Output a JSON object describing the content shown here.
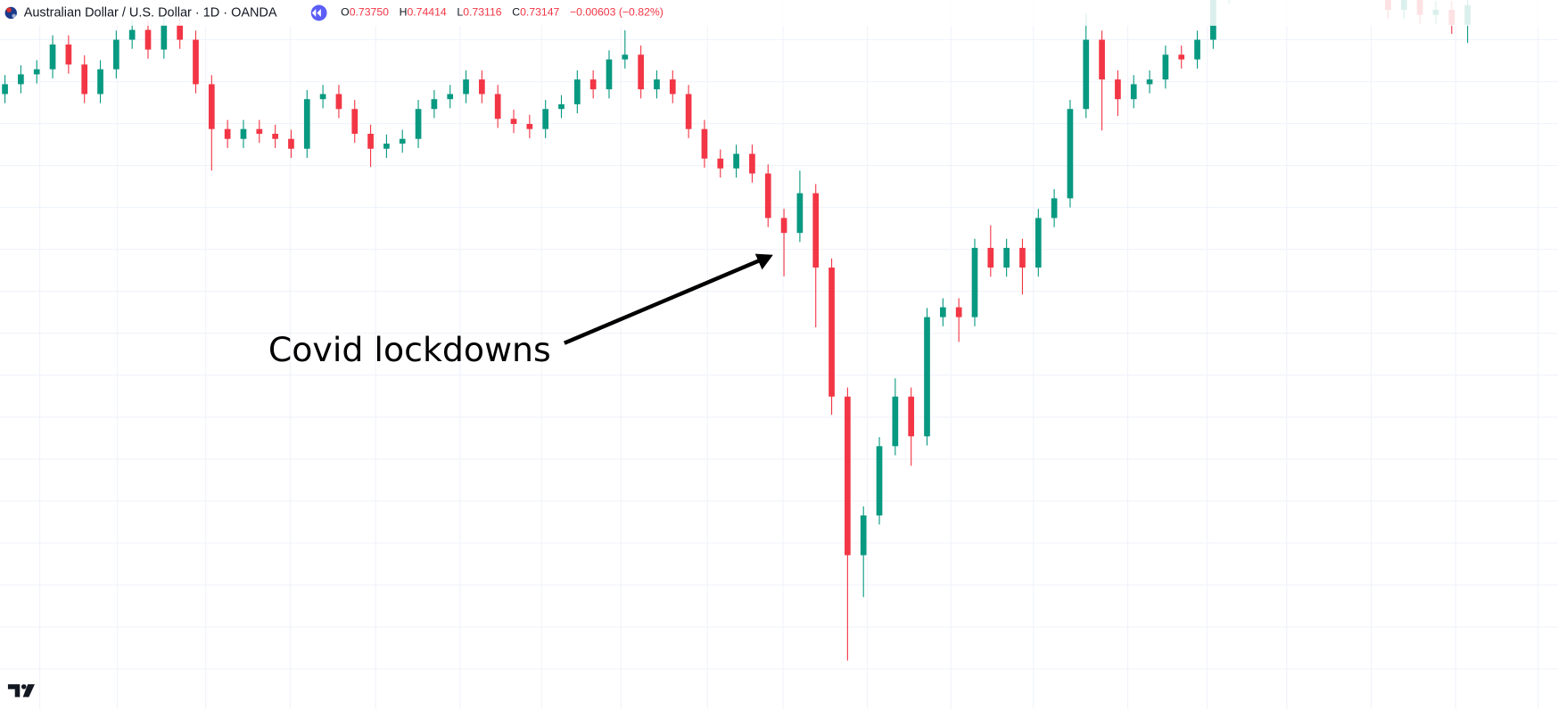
{
  "chart_data": {
    "type": "candlestick",
    "title": "Australian Dollar / U.S. Dollar · 1D · OANDA",
    "legend": {
      "open_label": "O",
      "open": "0.73750",
      "high_label": "H",
      "high": "0.74414",
      "low_label": "L",
      "low": "0.73116",
      "close_label": "C",
      "close": "0.73147",
      "change": "−0.00603 (−0.82%)"
    },
    "annotation": "Covid lockdowns",
    "up_color": "#089981",
    "down_color": "#f23645",
    "ylim": [
      0.5373,
      0.7318
    ],
    "open": [
      0.706,
      0.7087,
      0.7114,
      0.7128,
      0.7196,
      0.7141,
      0.706,
      0.7128,
      0.7209,
      0.7236,
      0.7182,
      0.725,
      0.7209,
      0.7087,
      0.6964,
      0.6937,
      0.6964,
      0.6951,
      0.6937,
      0.691,
      0.7046,
      0.706,
      0.7019,
      0.6951,
      0.691,
      0.6924,
      0.6937,
      0.7019,
      0.7046,
      0.706,
      0.71,
      0.706,
      0.6992,
      0.6978,
      0.6964,
      0.7019,
      0.7032,
      0.71,
      0.7073,
      0.7155,
      0.7168,
      0.7073,
      0.71,
      0.706,
      0.6964,
      0.6883,
      0.6856,
      0.6896,
      0.6842,
      0.672,
      0.6679,
      0.6788,
      0.6584,
      0.623,
      0.5795,
      0.5904,
      0.6094,
      0.623,
      0.6121,
      0.6448,
      0.6475,
      0.6448,
      0.6638,
      0.6584,
      0.6638,
      0.6584,
      0.672,
      0.6774,
      0.7019,
      0.7209,
      0.71,
      0.7046,
      0.7087,
      0.71,
      0.7168,
      0.7155,
      0.7209,
      0.7332,
      null,
      null,
      null,
      null,
      null,
      null,
      null,
      null,
      null,
      0.7318,
      0.7291,
      0.7332,
      0.7277,
      0.7291,
      0.725
    ],
    "high": [
      0.7112,
      0.7139,
      0.7153,
      0.7221,
      0.7221,
      0.7166,
      0.7153,
      0.7234,
      0.7261,
      0.7261,
      0.7275,
      0.7275,
      0.7234,
      0.7112,
      0.6989,
      0.6989,
      0.6989,
      0.6976,
      0.6962,
      0.7071,
      0.7085,
      0.7085,
      0.7044,
      0.6976,
      0.6949,
      0.6962,
      0.7044,
      0.7071,
      0.7085,
      0.7125,
      0.7125,
      0.7085,
      0.7017,
      0.7003,
      0.7044,
      0.7057,
      0.7125,
      0.7125,
      0.718,
      0.7235,
      0.7193,
      0.7125,
      0.7125,
      0.7085,
      0.6989,
      0.6908,
      0.6921,
      0.6921,
      0.6867,
      0.6745,
      0.685,
      0.6813,
      0.6609,
      0.6255,
      0.5929,
      0.6119,
      0.628,
      0.6255,
      0.6473,
      0.65,
      0.65,
      0.6663,
      0.67,
      0.6663,
      0.6663,
      0.6745,
      0.6799,
      0.7044,
      0.728,
      0.7234,
      0.7125,
      0.7112,
      0.7125,
      0.7193,
      0.7193,
      0.7234,
      0.7357,
      0.7397,
      null,
      null,
      null,
      null,
      null,
      null,
      null,
      null,
      null,
      0.7343,
      0.7357,
      0.7357,
      0.7316,
      0.7316,
      0.7329
    ],
    "low": [
      0.7035,
      0.7062,
      0.7089,
      0.7103,
      0.7116,
      0.7035,
      0.7035,
      0.7103,
      0.7184,
      0.7157,
      0.7157,
      0.7184,
      0.7062,
      0.685,
      0.6912,
      0.6912,
      0.6926,
      0.6912,
      0.6885,
      0.6885,
      0.7021,
      0.6994,
      0.6926,
      0.686,
      0.6885,
      0.6899,
      0.6912,
      0.6994,
      0.7021,
      0.7035,
      0.7035,
      0.6967,
      0.6953,
      0.6939,
      0.6939,
      0.6994,
      0.7007,
      0.7048,
      0.7048,
      0.713,
      0.7048,
      0.7048,
      0.7035,
      0.6939,
      0.6858,
      0.6831,
      0.6831,
      0.6817,
      0.6695,
      0.656,
      0.6654,
      0.642,
      0.618,
      0.5506,
      0.568,
      0.5879,
      0.6069,
      0.604,
      0.6096,
      0.6423,
      0.638,
      0.6423,
      0.6559,
      0.6559,
      0.651,
      0.6559,
      0.6695,
      0.6749,
      0.6994,
      0.696,
      0.7,
      0.7021,
      0.7062,
      0.7075,
      0.713,
      0.713,
      0.7184,
      0.7307,
      null,
      null,
      null,
      null,
      null,
      null,
      null,
      null,
      null,
      0.7266,
      0.7266,
      0.7252,
      0.7252,
      0.7225,
      0.72
    ],
    "close": [
      0.7087,
      0.7114,
      0.7128,
      0.7196,
      0.7141,
      0.706,
      0.7128,
      0.7209,
      0.7236,
      0.7182,
      0.725,
      0.7209,
      0.7087,
      0.6964,
      0.6937,
      0.6964,
      0.6951,
      0.6937,
      0.691,
      0.7046,
      0.706,
      0.7019,
      0.6951,
      0.691,
      0.6924,
      0.6937,
      0.7019,
      0.7046,
      0.706,
      0.71,
      0.706,
      0.6992,
      0.6978,
      0.6964,
      0.7019,
      0.7032,
      0.71,
      0.7073,
      0.7155,
      0.7168,
      0.7073,
      0.71,
      0.706,
      0.6964,
      0.6883,
      0.6856,
      0.6896,
      0.6842,
      0.672,
      0.6679,
      0.6788,
      0.6584,
      0.623,
      0.5795,
      0.5904,
      0.6094,
      0.623,
      0.6121,
      0.6448,
      0.6475,
      0.6448,
      0.6638,
      0.6584,
      0.6638,
      0.6584,
      0.672,
      0.6774,
      0.7019,
      0.7209,
      0.71,
      0.7046,
      0.7087,
      0.71,
      0.7168,
      0.7155,
      0.7209,
      0.7332,
      0.7372,
      null,
      null,
      null,
      null,
      null,
      null,
      null,
      null,
      null,
      0.7291,
      0.7332,
      0.7277,
      0.7291,
      0.725,
      0.7304
    ]
  }
}
